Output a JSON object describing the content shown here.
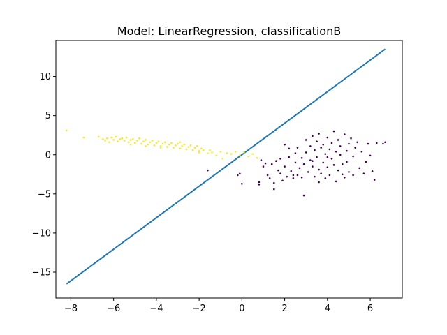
{
  "chart_data": {
    "type": "scatter",
    "title": "Model: LinearRegression, classificationB",
    "xlabel": "",
    "ylabel": "",
    "xlim": [
      -8.7,
      7.5
    ],
    "ylim": [
      -18.3,
      14.6
    ],
    "xticks": [
      -8,
      -6,
      -4,
      -2,
      0,
      2,
      4,
      6
    ],
    "yticks": [
      -15,
      -10,
      -5,
      0,
      5,
      10
    ],
    "xtick_labels": [
      "−8",
      "−6",
      "−4",
      "−2",
      "0",
      "2",
      "4",
      "6"
    ],
    "ytick_labels": [
      "−15",
      "−10",
      "−5",
      "0",
      "5",
      "10"
    ],
    "grid": false,
    "legend": "none",
    "colors": {
      "line": "#1f77b4",
      "class_yellow": "#fde725",
      "class_purple": "#440154",
      "axes": "#000000"
    },
    "series": [
      {
        "type": "line",
        "x": [
          -8.2,
          6.7
        ],
        "y": [
          -16.5,
          13.5
        ]
      },
      {
        "type": "scatter",
        "color": "class_yellow",
        "points": [
          [
            -8.2,
            3.1
          ],
          [
            -7.4,
            2.2
          ],
          [
            -6.7,
            2.3
          ],
          [
            -6.5,
            2.0
          ],
          [
            -6.4,
            1.8
          ],
          [
            -6.3,
            2.1
          ],
          [
            -6.1,
            2.2
          ],
          [
            -6.0,
            1.9
          ],
          [
            -5.9,
            2.3
          ],
          [
            -5.8,
            1.7
          ],
          [
            -5.7,
            2.0
          ],
          [
            -5.6,
            2.1
          ],
          [
            -5.5,
            1.8
          ],
          [
            -5.4,
            2.2
          ],
          [
            -5.3,
            1.6
          ],
          [
            -5.2,
            1.9
          ],
          [
            -5.1,
            2.0
          ],
          [
            -5.0,
            1.5
          ],
          [
            -4.9,
            1.8
          ],
          [
            -4.8,
            2.1
          ],
          [
            -4.7,
            1.4
          ],
          [
            -4.6,
            1.7
          ],
          [
            -4.5,
            1.9
          ],
          [
            -4.4,
            1.3
          ],
          [
            -4.3,
            1.6
          ],
          [
            -4.2,
            1.8
          ],
          [
            -4.1,
            1.2
          ],
          [
            -4.0,
            1.5
          ],
          [
            -3.9,
            1.7
          ],
          [
            -3.8,
            1.1
          ],
          [
            -3.7,
            1.4
          ],
          [
            -3.6,
            1.6
          ],
          [
            -3.5,
            1.0
          ],
          [
            -3.4,
            1.3
          ],
          [
            -3.3,
            1.5
          ],
          [
            -3.2,
            0.9
          ],
          [
            -3.1,
            1.2
          ],
          [
            -3.0,
            1.4
          ],
          [
            -2.9,
            0.8
          ],
          [
            -2.8,
            1.1
          ],
          [
            -2.7,
            1.3
          ],
          [
            -2.6,
            0.7
          ],
          [
            -2.5,
            1.0
          ],
          [
            -2.4,
            1.2
          ],
          [
            -2.3,
            0.6
          ],
          [
            -2.2,
            0.9
          ],
          [
            -2.1,
            1.1
          ],
          [
            -2.0,
            0.5
          ],
          [
            -1.9,
            0.8
          ],
          [
            -1.8,
            0.6
          ],
          [
            -1.6,
            0.2
          ],
          [
            -1.5,
            0.6
          ],
          [
            -1.4,
            0.3
          ],
          [
            -1.2,
            -0.1
          ],
          [
            -1.0,
            0.4
          ],
          [
            -0.9,
            -0.5
          ],
          [
            -0.7,
            0.2
          ],
          [
            -0.5,
            0.1
          ],
          [
            -0.3,
            0.4
          ],
          [
            -0.1,
            -0.1
          ],
          [
            0.1,
            0.3
          ],
          [
            0.3,
            -0.2
          ],
          [
            0.5,
            0.1
          ],
          [
            0.7,
            -0.4
          ],
          [
            -5.2,
            1.3
          ],
          [
            -4.5,
            1.1
          ],
          [
            -3.8,
            0.9
          ],
          [
            -2.9,
            1.6
          ],
          [
            -2.0,
            0.3
          ],
          [
            -6.2,
            1.6
          ]
        ]
      },
      {
        "type": "scatter",
        "color": "class_purple",
        "points": [
          [
            -1.6,
            -2.0
          ],
          [
            -0.2,
            -2.6
          ],
          [
            -0.1,
            -2.4
          ],
          [
            0.0,
            -3.7
          ],
          [
            0.8,
            -3.5
          ],
          [
            0.8,
            -3.8
          ],
          [
            0.9,
            -0.7
          ],
          [
            1.0,
            -1.5
          ],
          [
            1.1,
            -1.1
          ],
          [
            1.2,
            -2.6
          ],
          [
            1.3,
            -3.0
          ],
          [
            1.4,
            -1.2
          ],
          [
            1.5,
            -4.4
          ],
          [
            1.5,
            -3.6
          ],
          [
            1.6,
            -0.8
          ],
          [
            1.7,
            -2.0
          ],
          [
            1.8,
            -2.4
          ],
          [
            1.9,
            -3.3
          ],
          [
            2.0,
            1.3
          ],
          [
            2.0,
            -1.5
          ],
          [
            2.1,
            -2.8
          ],
          [
            2.2,
            -0.3
          ],
          [
            2.2,
            0.8
          ],
          [
            2.3,
            -2.1
          ],
          [
            2.4,
            -3.0
          ],
          [
            2.5,
            -1.0
          ],
          [
            2.5,
            0.2
          ],
          [
            2.6,
            -2.6
          ],
          [
            2.6,
            0.9
          ],
          [
            2.7,
            -1.7
          ],
          [
            2.8,
            -0.4
          ],
          [
            2.8,
            -2.9
          ],
          [
            2.9,
            -5.2
          ],
          [
            2.9,
            -1.2
          ],
          [
            3.0,
            1.9
          ],
          [
            3.0,
            0.3
          ],
          [
            3.1,
            -2.2
          ],
          [
            3.2,
            1.1
          ],
          [
            3.2,
            -0.7
          ],
          [
            3.3,
            2.4
          ],
          [
            3.3,
            -1.5
          ],
          [
            3.4,
            0.6
          ],
          [
            3.4,
            -2.8
          ],
          [
            3.5,
            1.7
          ],
          [
            3.5,
            -0.3
          ],
          [
            3.6,
            -1.9
          ],
          [
            3.6,
            2.7
          ],
          [
            3.7,
            0.9
          ],
          [
            3.7,
            -2.4
          ],
          [
            3.8,
            -1.0
          ],
          [
            3.8,
            1.3
          ],
          [
            3.9,
            -3.0
          ],
          [
            3.9,
            0.1
          ],
          [
            4.0,
            2.2
          ],
          [
            4.0,
            -1.6
          ],
          [
            4.1,
            0.7
          ],
          [
            4.1,
            -2.6
          ],
          [
            4.2,
            1.5
          ],
          [
            4.2,
            -0.5
          ],
          [
            4.3,
            3.0
          ],
          [
            4.3,
            -1.3
          ],
          [
            4.4,
            0.4
          ],
          [
            4.4,
            -3.4
          ],
          [
            4.5,
            1.9
          ],
          [
            4.5,
            -2.0
          ],
          [
            4.6,
            0.0
          ],
          [
            4.6,
            1.1
          ],
          [
            4.7,
            -1.2
          ],
          [
            4.8,
            2.6
          ],
          [
            4.8,
            -2.9
          ],
          [
            4.9,
            0.5
          ],
          [
            4.9,
            -0.9
          ],
          [
            5.0,
            1.4
          ],
          [
            5.0,
            -2.2
          ],
          [
            5.1,
            2.1
          ],
          [
            5.2,
            -0.2
          ],
          [
            5.2,
            -2.6
          ],
          [
            5.3,
            0.9
          ],
          [
            5.4,
            1.6
          ],
          [
            5.5,
            -1.7
          ],
          [
            5.6,
            0.4
          ],
          [
            5.7,
            -2.4
          ],
          [
            5.8,
            -0.9
          ],
          [
            5.9,
            1.4
          ],
          [
            6.0,
            -0.1
          ],
          [
            6.1,
            -2.1
          ],
          [
            6.2,
            -3.2
          ],
          [
            6.3,
            1.5
          ],
          [
            6.6,
            1.4
          ],
          [
            6.7,
            1.6
          ],
          [
            2.4,
            -2.6
          ],
          [
            3.3,
            -0.8
          ],
          [
            4.0,
            -0.3
          ],
          [
            1.8,
            -0.5
          ],
          [
            3.6,
            -3.5
          ],
          [
            4.7,
            -2.5
          ]
        ]
      }
    ]
  }
}
